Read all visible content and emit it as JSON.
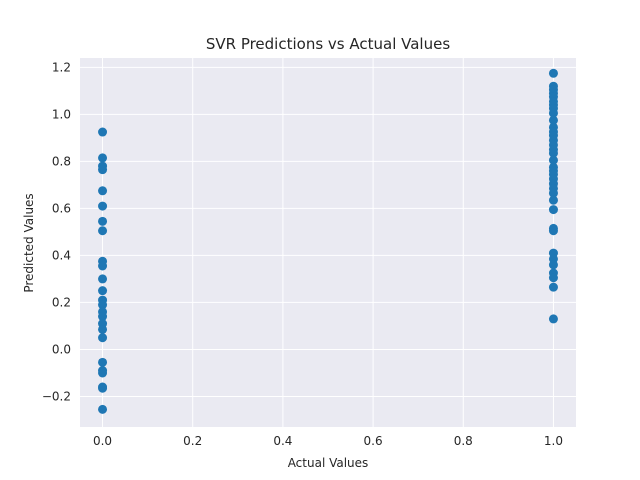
{
  "chart_data": {
    "type": "scatter",
    "title": "SVR Predictions vs Actual Values",
    "xlabel": "Actual Values",
    "ylabel": "Predicted Values",
    "xlim": [
      -0.05,
      1.05
    ],
    "ylim": [
      -0.33,
      1.24
    ],
    "xticks": [
      0.0,
      0.2,
      0.4,
      0.6,
      0.8,
      1.0
    ],
    "yticks": [
      -0.2,
      0.0,
      0.2,
      0.4,
      0.6,
      0.8,
      1.0,
      1.2
    ],
    "xtick_labels": [
      "0.0",
      "0.2",
      "0.4",
      "0.6",
      "0.8",
      "1.0"
    ],
    "ytick_labels": [
      "−0.2",
      "0.0",
      "0.2",
      "0.4",
      "0.6",
      "0.8",
      "1.0",
      "1.2"
    ],
    "grid": true,
    "marker_color": "#1f77b4",
    "background_color": "#eaeaf2",
    "grid_color": "#ffffff",
    "points": [
      {
        "x": 0,
        "y": 0.925
      },
      {
        "x": 0,
        "y": 0.815
      },
      {
        "x": 0,
        "y": 0.78
      },
      {
        "x": 0,
        "y": 0.765
      },
      {
        "x": 0,
        "y": 0.675
      },
      {
        "x": 0,
        "y": 0.61
      },
      {
        "x": 0,
        "y": 0.545
      },
      {
        "x": 0,
        "y": 0.505
      },
      {
        "x": 0,
        "y": 0.375
      },
      {
        "x": 0,
        "y": 0.355
      },
      {
        "x": 0,
        "y": 0.3
      },
      {
        "x": 0,
        "y": 0.25
      },
      {
        "x": 0,
        "y": 0.21
      },
      {
        "x": 0,
        "y": 0.19
      },
      {
        "x": 0,
        "y": 0.16
      },
      {
        "x": 0,
        "y": 0.14
      },
      {
        "x": 0,
        "y": 0.11
      },
      {
        "x": 0,
        "y": 0.085
      },
      {
        "x": 0,
        "y": 0.05
      },
      {
        "x": 0,
        "y": -0.055
      },
      {
        "x": 0,
        "y": -0.09
      },
      {
        "x": 0,
        "y": -0.1
      },
      {
        "x": 0,
        "y": -0.16
      },
      {
        "x": 0,
        "y": -0.165
      },
      {
        "x": 0,
        "y": -0.255
      },
      {
        "x": 1,
        "y": 1.175
      },
      {
        "x": 1,
        "y": 1.12
      },
      {
        "x": 1,
        "y": 1.105
      },
      {
        "x": 1,
        "y": 1.09
      },
      {
        "x": 1,
        "y": 1.075
      },
      {
        "x": 1,
        "y": 1.055
      },
      {
        "x": 1,
        "y": 1.04
      },
      {
        "x": 1,
        "y": 1.025
      },
      {
        "x": 1,
        "y": 1.005
      },
      {
        "x": 1,
        "y": 0.975
      },
      {
        "x": 1,
        "y": 0.945
      },
      {
        "x": 1,
        "y": 0.925
      },
      {
        "x": 1,
        "y": 0.91
      },
      {
        "x": 1,
        "y": 0.89
      },
      {
        "x": 1,
        "y": 0.87
      },
      {
        "x": 1,
        "y": 0.85
      },
      {
        "x": 1,
        "y": 0.835
      },
      {
        "x": 1,
        "y": 0.805
      },
      {
        "x": 1,
        "y": 0.775
      },
      {
        "x": 1,
        "y": 0.76
      },
      {
        "x": 1,
        "y": 0.745
      },
      {
        "x": 1,
        "y": 0.725
      },
      {
        "x": 1,
        "y": 0.705
      },
      {
        "x": 1,
        "y": 0.685
      },
      {
        "x": 1,
        "y": 0.665
      },
      {
        "x": 1,
        "y": 0.635
      },
      {
        "x": 1,
        "y": 0.595
      },
      {
        "x": 1,
        "y": 0.515
      },
      {
        "x": 1,
        "y": 0.505
      },
      {
        "x": 1,
        "y": 0.41
      },
      {
        "x": 1,
        "y": 0.385
      },
      {
        "x": 1,
        "y": 0.36
      },
      {
        "x": 1,
        "y": 0.325
      },
      {
        "x": 1,
        "y": 0.305
      },
      {
        "x": 1,
        "y": 0.265
      },
      {
        "x": 1,
        "y": 0.13
      }
    ]
  }
}
